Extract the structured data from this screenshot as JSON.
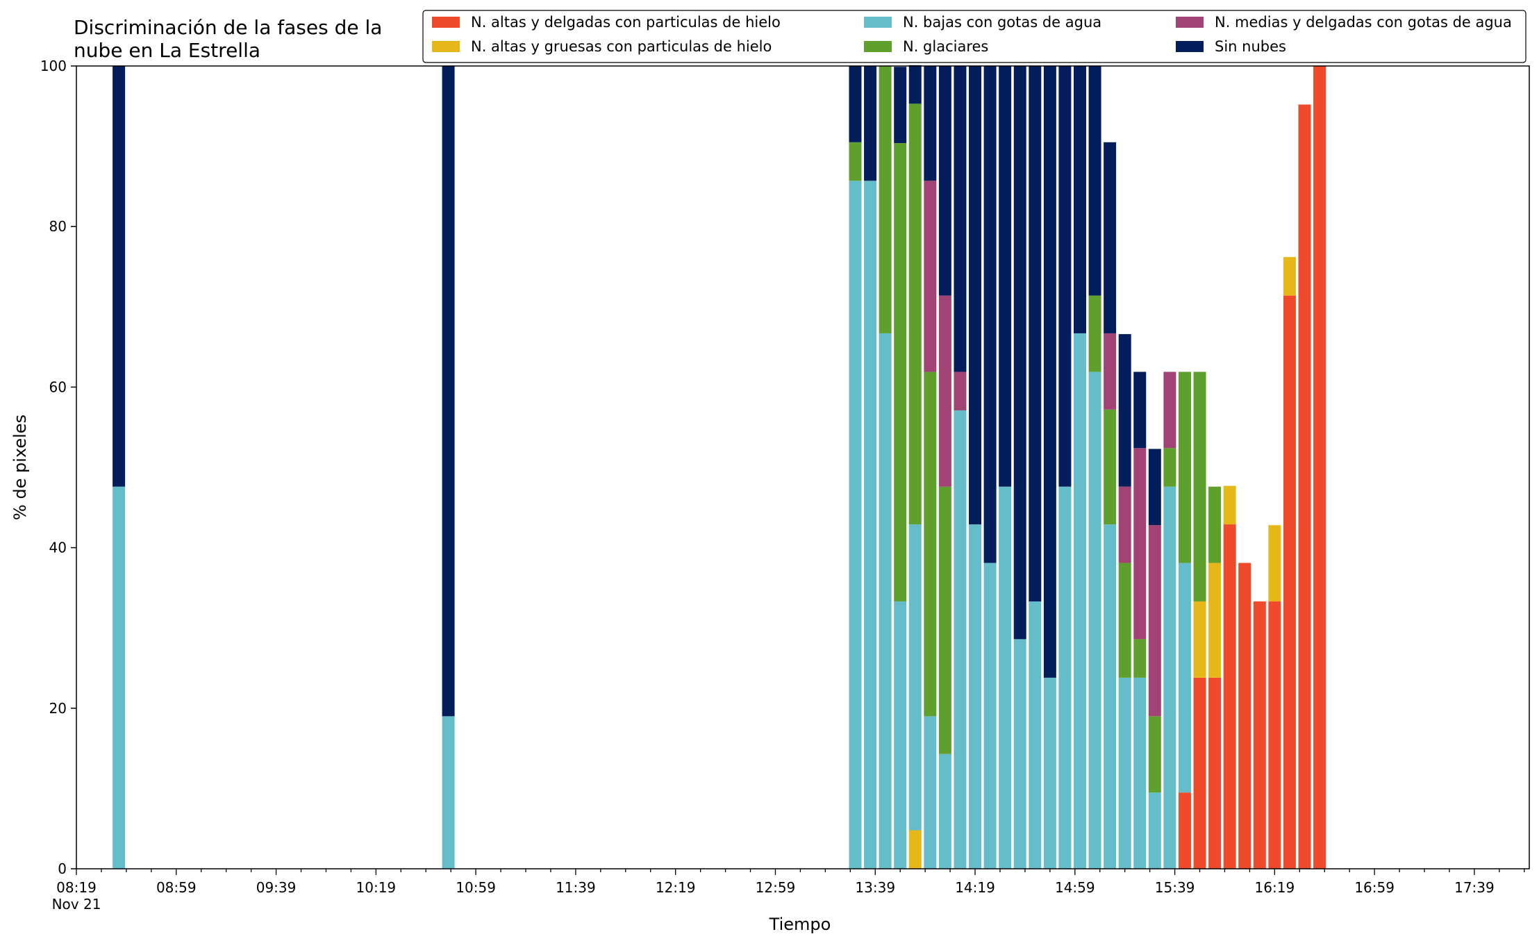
{
  "chart_data": {
    "type": "bar",
    "stacked": true,
    "title": "Discriminación de la fases de la\nnube en La Estrella",
    "xlabel": "Tiempo",
    "ylabel": "% de pixeles",
    "ylim": [
      0,
      100
    ],
    "y_ticks": [
      0,
      20,
      40,
      60,
      80,
      100
    ],
    "grid": false,
    "legend_position": "top-right",
    "x_axis": {
      "start": "08:19",
      "end": "18:01",
      "tick_labels": [
        "08:19",
        "08:59",
        "09:39",
        "10:19",
        "10:59",
        "11:39",
        "12:19",
        "12:59",
        "13:39",
        "14:19",
        "14:59",
        "15:39",
        "16:19",
        "16:59",
        "17:39"
      ],
      "date_label": "Nov 21"
    },
    "x": [
      "08:36",
      "10:48",
      "13:31",
      "13:37",
      "13:43",
      "13:49",
      "13:55",
      "14:01",
      "14:07",
      "14:13",
      "14:19",
      "14:25",
      "14:31",
      "14:37",
      "14:43",
      "14:49",
      "14:55",
      "15:01",
      "15:07",
      "15:13",
      "15:19",
      "15:25",
      "15:31",
      "15:37",
      "15:43",
      "15:49",
      "15:55",
      "16:01",
      "16:07",
      "16:13",
      "16:19",
      "16:25",
      "16:31",
      "16:37",
      "16:43",
      "16:49"
    ],
    "series": [
      {
        "name": "N. altas y delgadas con particulas de hielo",
        "color": "#ef4a2b",
        "values": [
          0,
          0,
          0,
          0,
          0,
          0,
          0,
          0,
          0,
          0,
          0,
          0,
          0,
          0,
          0,
          0,
          0,
          0,
          0,
          0,
          0,
          0,
          0,
          0,
          9.5,
          23.8,
          23.8,
          42.9,
          38.1,
          33.3,
          33.3,
          71.4,
          95.2,
          100,
          0,
          0
        ]
      },
      {
        "name": "N. altas y gruesas con particulas de hielo",
        "color": "#e5b719",
        "values": [
          0,
          0,
          0,
          0,
          0,
          0,
          4.8,
          0,
          0,
          0,
          0,
          0,
          0,
          0,
          0,
          0,
          0,
          0,
          0,
          0,
          0,
          0,
          0,
          0,
          0,
          9.5,
          14.3,
          4.8,
          0,
          0,
          9.5,
          4.8,
          0,
          0,
          0,
          0
        ]
      },
      {
        "name": "N. bajas con gotas de agua",
        "color": "#66bdca",
        "values": [
          47.6,
          19,
          85.7,
          85.7,
          66.7,
          33.3,
          38.1,
          19,
          14.3,
          57.1,
          42.9,
          38.1,
          47.6,
          28.6,
          33.3,
          23.8,
          47.6,
          66.7,
          61.9,
          42.9,
          23.8,
          23.8,
          9.5,
          47.6,
          28.6,
          0,
          0,
          0,
          0,
          0,
          0,
          0,
          0,
          0,
          0,
          0
        ]
      },
      {
        "name": "N. glaciares",
        "color": "#5e9f2d",
        "values": [
          0,
          0,
          4.8,
          0,
          33.3,
          57.1,
          52.4,
          42.9,
          33.3,
          0,
          0,
          0,
          0,
          0,
          0,
          0,
          0,
          0,
          9.5,
          14.3,
          14.3,
          4.8,
          9.5,
          4.8,
          23.8,
          28.6,
          9.5,
          0,
          0,
          0,
          0,
          0,
          0,
          0,
          0,
          0
        ]
      },
      {
        "name": "N. medias y delgadas con gotas de agua",
        "color": "#a24375",
        "values": [
          0,
          0,
          0,
          0,
          0,
          0,
          0,
          23.8,
          23.8,
          4.8,
          0,
          0,
          0,
          0,
          0,
          0,
          0,
          0,
          0,
          9.5,
          9.5,
          23.8,
          23.8,
          9.5,
          0,
          0,
          0,
          0,
          0,
          0,
          0,
          0,
          0,
          0,
          0,
          0
        ]
      },
      {
        "name": "Sin nubes",
        "color": "#041e5c",
        "values": [
          52.4,
          81,
          9.5,
          14.3,
          0,
          9.5,
          4.8,
          14.3,
          28.6,
          38.1,
          57.1,
          61.9,
          52.4,
          71.4,
          66.7,
          76.2,
          52.4,
          33.3,
          28.6,
          23.8,
          19,
          9.5,
          9.5,
          0,
          0,
          0,
          0,
          0,
          0,
          0,
          0,
          0,
          0,
          0,
          0,
          0
        ]
      }
    ]
  }
}
